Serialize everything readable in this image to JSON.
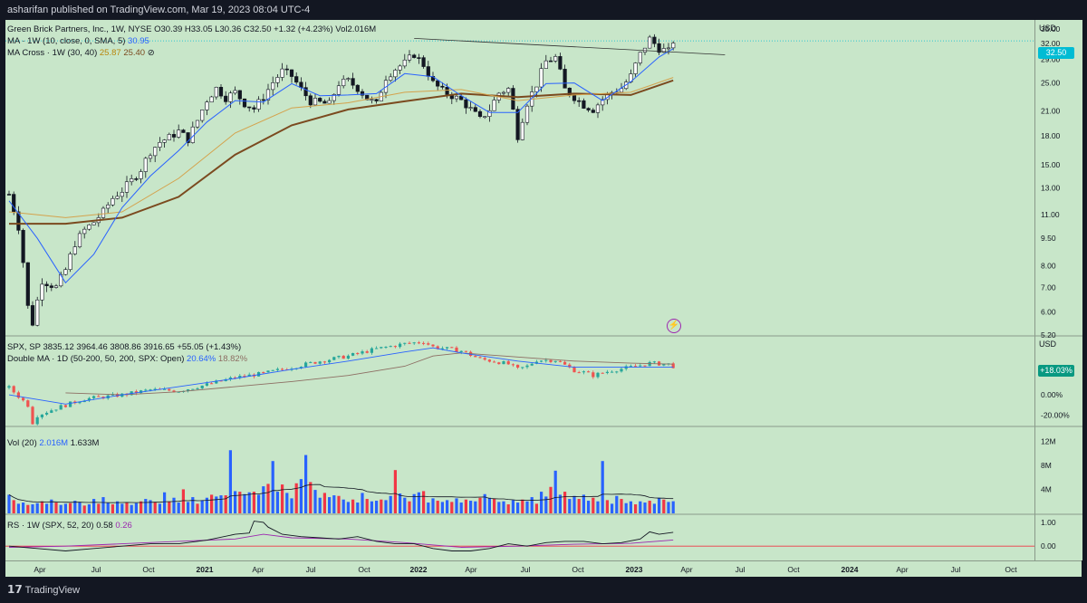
{
  "header": {
    "publisher": "asharifan published on TradingView.com, Mar 19, 2023 08:04 UTC-4"
  },
  "footer": {
    "brand": "TradingView"
  },
  "panes": {
    "price": {
      "legend1": "Green Brick Partners, Inc., 1W, NYSE",
      "ohlc": "O30.39 H33.05 L30.36 C32.50 +1.32 (+4.23%) Vol2.016M",
      "legend2_label": "MA · 1W (10, close, 0, SMA, 5)",
      "legend2_value": "30.95",
      "legend3_label": "MA Cross · 1W (30, 40)",
      "legend3_v1": "25.87",
      "legend3_v2": "25.40",
      "legend3_suffix": "⊘",
      "currency": "USD",
      "last_price": "32.50",
      "ticks": [
        "35.00",
        "32.00",
        "29.00",
        "25.00",
        "21.00",
        "18.00",
        "15.00",
        "13.00",
        "11.00",
        "9.50",
        "8.00",
        "7.00",
        "6.00",
        "5.20"
      ]
    },
    "spx": {
      "legend1": "SPX, SP",
      "ohlc": "3835.12 3964.46 3808.86 3916.65 +55.05 (+1.43%)",
      "legend2_label": "Double MA · 1D (50-200, 50, 200, SPX: Open)",
      "legend2_v1": "20.64%",
      "legend2_v2": "18.82%",
      "currency": "USD",
      "last_pct": "+18.03%",
      "ticks": [
        "0.00%",
        "-20.00%"
      ]
    },
    "vol": {
      "legend_label": "Vol (20)",
      "legend_v1": "2.016M",
      "legend_v2": "1.633M",
      "ticks": [
        "12M",
        "8M",
        "4M"
      ]
    },
    "rs": {
      "legend_label": "RS · 1W (SPX, 52, 20)",
      "legend_v1": "0.58",
      "legend_v2": "0.26",
      "ticks": [
        "1.00",
        "0.00"
      ]
    }
  },
  "xaxis": [
    "Apr",
    "Jul",
    "Oct",
    "2021",
    "Apr",
    "Jul",
    "Oct",
    "2022",
    "Apr",
    "Jul",
    "Oct",
    "2023",
    "Apr",
    "Jul",
    "Oct",
    "2024",
    "Apr",
    "Jul",
    "Oct"
  ],
  "colors": {
    "up": "#ffffff",
    "down": "#131722",
    "ma10": "#2962ff",
    "ma30": "#d4a24c",
    "ma40": "#7b4a1f",
    "spx_up": "#26a69a",
    "spx_down": "#ef5350",
    "vol_up": "#2962ff",
    "vol_down": "#f23645",
    "rs": "#131722",
    "rs_ma": "#9c27b0",
    "ref": "#f23645",
    "badge_price": "#00bcd4",
    "badge_pct": "#089981"
  },
  "chart_data": [
    {
      "type": "candlestick",
      "title": "Green Brick Partners, Inc., 1W, NYSE",
      "ylabel": "USD",
      "ylim": [
        5.2,
        36
      ],
      "log_scale": true,
      "x_start": "2020-03-02",
      "x_end": "2023-03-13",
      "close_path": [
        [
          0,
          12.5
        ],
        [
          2,
          10.2
        ],
        [
          4,
          6.2
        ],
        [
          5,
          5.6
        ],
        [
          7,
          7.3
        ],
        [
          10,
          7.0
        ],
        [
          12,
          7.8
        ],
        [
          14,
          9.2
        ],
        [
          16,
          10.0
        ],
        [
          18,
          10.5
        ],
        [
          20,
          11.2
        ],
        [
          22,
          12.2
        ],
        [
          24,
          12.8
        ],
        [
          26,
          13.6
        ],
        [
          28,
          14.6
        ],
        [
          30,
          16.3
        ],
        [
          32,
          17.3
        ],
        [
          34,
          17.8
        ],
        [
          36,
          18.5
        ],
        [
          38,
          17.6
        ],
        [
          40,
          19.8
        ],
        [
          42,
          22.5
        ],
        [
          44,
          24.2
        ],
        [
          46,
          22.8
        ],
        [
          48,
          23.6
        ],
        [
          50,
          22.0
        ],
        [
          52,
          21.3
        ],
        [
          54,
          22.9
        ],
        [
          56,
          25.1
        ],
        [
          58,
          26.9
        ],
        [
          60,
          26.1
        ],
        [
          62,
          24.0
        ],
        [
          64,
          22.3
        ],
        [
          66,
          22.1
        ],
        [
          68,
          21.9
        ],
        [
          70,
          24.9
        ],
        [
          72,
          25.3
        ],
        [
          74,
          24.2
        ],
        [
          76,
          22.7
        ],
        [
          78,
          21.9
        ],
        [
          80,
          25.9
        ],
        [
          82,
          27.3
        ],
        [
          84,
          28.3
        ],
        [
          86,
          29.9
        ],
        [
          88,
          28.0
        ],
        [
          90,
          25.0
        ],
        [
          92,
          23.8
        ],
        [
          94,
          23.1
        ],
        [
          96,
          22.4
        ],
        [
          98,
          21.2
        ],
        [
          100,
          19.9
        ],
        [
          102,
          21.2
        ],
        [
          104,
          23.5
        ],
        [
          106,
          24.1
        ],
        [
          108,
          18.0
        ],
        [
          110,
          22.1
        ],
        [
          112,
          24.8
        ],
        [
          114,
          28.6
        ],
        [
          116,
          29.3
        ],
        [
          118,
          24.0
        ],
        [
          120,
          22.9
        ],
        [
          122,
          21.8
        ],
        [
          124,
          21.2
        ],
        [
          126,
          22.6
        ],
        [
          128,
          23.6
        ],
        [
          130,
          24.2
        ],
        [
          132,
          26.1
        ],
        [
          134,
          29.9
        ],
        [
          136,
          32.9
        ],
        [
          138,
          31.0
        ],
        [
          140,
          30.4
        ],
        [
          141,
          32.5
        ]
      ],
      "ma10_path": [
        [
          0,
          12.0
        ],
        [
          6,
          9.5
        ],
        [
          12,
          7.2
        ],
        [
          18,
          8.6
        ],
        [
          24,
          11.5
        ],
        [
          30,
          14.0
        ],
        [
          36,
          16.4
        ],
        [
          42,
          19.6
        ],
        [
          48,
          22.4
        ],
        [
          54,
          22.2
        ],
        [
          60,
          24.9
        ],
        [
          66,
          23.1
        ],
        [
          72,
          23.2
        ],
        [
          78,
          23.4
        ],
        [
          84,
          26.5
        ],
        [
          90,
          26.0
        ],
        [
          96,
          23.1
        ],
        [
          102,
          20.8
        ],
        [
          108,
          20.8
        ],
        [
          114,
          24.9
        ],
        [
          120,
          25.0
        ],
        [
          126,
          22.4
        ],
        [
          132,
          25.2
        ],
        [
          138,
          29.4
        ],
        [
          141,
          30.95
        ]
      ],
      "ma30_path": [
        [
          0,
          11.2
        ],
        [
          12,
          10.8
        ],
        [
          24,
          11.2
        ],
        [
          36,
          13.8
        ],
        [
          48,
          18.3
        ],
        [
          60,
          21.4
        ],
        [
          72,
          22.1
        ],
        [
          84,
          23.6
        ],
        [
          96,
          24.0
        ],
        [
          108,
          22.4
        ],
        [
          120,
          23.2
        ],
        [
          132,
          23.6
        ],
        [
          141,
          25.87
        ]
      ],
      "ma40_path": [
        [
          0,
          10.4
        ],
        [
          12,
          10.4
        ],
        [
          24,
          10.8
        ],
        [
          36,
          12.3
        ],
        [
          48,
          16.0
        ],
        [
          60,
          19.2
        ],
        [
          72,
          21.2
        ],
        [
          84,
          22.3
        ],
        [
          96,
          23.4
        ],
        [
          108,
          22.9
        ],
        [
          120,
          23.4
        ],
        [
          132,
          23.2
        ],
        [
          141,
          25.4
        ]
      ],
      "trendline": [
        [
          86,
          33.0
        ],
        [
          152,
          29.8
        ]
      ]
    },
    {
      "type": "candlestick",
      "title": "SPX, SP",
      "ylabel": "USD",
      "close_pct_path": [
        [
          0,
          7
        ],
        [
          4,
          -10
        ],
        [
          5,
          -27
        ],
        [
          6,
          -20
        ],
        [
          10,
          -13
        ],
        [
          16,
          -4
        ],
        [
          24,
          0
        ],
        [
          30,
          5
        ],
        [
          36,
          4
        ],
        [
          42,
          10
        ],
        [
          48,
          17
        ],
        [
          54,
          21
        ],
        [
          60,
          27
        ],
        [
          66,
          33
        ],
        [
          72,
          38
        ],
        [
          78,
          45
        ],
        [
          84,
          50
        ],
        [
          88,
          52
        ],
        [
          90,
          47
        ],
        [
          96,
          43
        ],
        [
          100,
          35
        ],
        [
          104,
          32
        ],
        [
          106,
          30
        ],
        [
          108,
          25
        ],
        [
          110,
          28
        ],
        [
          112,
          34
        ],
        [
          116,
          34
        ],
        [
          120,
          24
        ],
        [
          122,
          22
        ],
        [
          124,
          19
        ],
        [
          128,
          24
        ],
        [
          132,
          27
        ],
        [
          136,
          31
        ],
        [
          140,
          30
        ],
        [
          141,
          28
        ]
      ],
      "ma_pct_paths": [
        {
          "name": "50",
          "points": [
            [
              0,
              0
            ],
            [
              12,
              -9
            ],
            [
              24,
              0
            ],
            [
              36,
              8
            ],
            [
              48,
              16
            ],
            [
              60,
              25
            ],
            [
              72,
              33
            ],
            [
              84,
              42
            ],
            [
              90,
              46
            ],
            [
              96,
              41
            ],
            [
              108,
              33
            ],
            [
              120,
              27
            ],
            [
              132,
              27
            ],
            [
              141,
              27
            ]
          ]
        },
        {
          "name": "200",
          "points": [
            [
              12,
              2
            ],
            [
              24,
              0
            ],
            [
              36,
              3
            ],
            [
              48,
              8
            ],
            [
              60,
              13
            ],
            [
              72,
              19
            ],
            [
              84,
              28
            ],
            [
              90,
              38
            ],
            [
              96,
              41
            ],
            [
              108,
              37
            ],
            [
              120,
              33
            ],
            [
              132,
              31
            ],
            [
              141,
              30
            ]
          ]
        }
      ]
    },
    {
      "type": "bar",
      "title": "Vol (20)",
      "ylabel": "",
      "ylim": [
        0,
        14
      ],
      "values": [
        3.1,
        2.2,
        1.6,
        1.8,
        1.4,
        1.5,
        1.7,
        2.0,
        1.6,
        2.3,
        1.8,
        1.4,
        1.6,
        1.7,
        2.1,
        1.9,
        1.3,
        1.5,
        2.4,
        1.6,
        2.7,
        1.8,
        1.5,
        2.0,
        1.6,
        1.8,
        1.4,
        1.7,
        2.0,
        2.4,
        2.2,
        1.9,
        1.6,
        3.5,
        2.0,
        2.6,
        1.8,
        4.0,
        1.9,
        2.7,
        1.6,
        2.2,
        2.6,
        3.1,
        2.8,
        3.0,
        3.0,
        10.5,
        3.7,
        3.6,
        3.2,
        3.5,
        3.6,
        3.1,
        4.5,
        4.9,
        8.7,
        3.6,
        4.8,
        3.4,
        2.5,
        5.0,
        5.7,
        9.7,
        5.2,
        3.9,
        2.6,
        3.4,
        2.7,
        3.0,
        2.9,
        2.3,
        1.9,
        2.3,
        1.8,
        3.4,
        2.4,
        2.0,
        2.1,
        2.3,
        2.2,
        2.9,
        7.2,
        3.3,
        2.6,
        2.0,
        3.2,
        3.5,
        3.7,
        1.8,
        2.5,
        2.1,
        1.9,
        2.2,
        1.9,
        2.5,
        1.8,
        2.3,
        2.1,
        2.0,
        2.6,
        3.2,
        2.6,
        2.4,
        1.9,
        2.0,
        1.5,
        2.2,
        1.8,
        2.3,
        2.0,
        2.7,
        1.6,
        3.6,
        2.8,
        4.4,
        7.1,
        3.1,
        3.6,
        2.4,
        2.9,
        2.4,
        3.1,
        2.1,
        2.6,
        2.0,
        8.7,
        2.2,
        1.6,
        2.9,
        2.4,
        1.7,
        2.0,
        1.5,
        2.0,
        1.8,
        2.1,
        1.6,
        2.6,
        2.3,
        1.9,
        2.016
      ]
    },
    {
      "type": "line",
      "title": "RS · 1W (SPX, 52, 20)",
      "ylabel": "",
      "ylim": [
        -0.6,
        1.3
      ],
      "series": [
        {
          "name": "RS",
          "points": [
            [
              0,
              0.0
            ],
            [
              6,
              -0.1
            ],
            [
              12,
              -0.2
            ],
            [
              18,
              -0.1
            ],
            [
              24,
              0.0
            ],
            [
              30,
              0.1
            ],
            [
              36,
              0.1
            ],
            [
              42,
              0.25
            ],
            [
              48,
              0.5
            ],
            [
              51,
              0.55
            ],
            [
              52,
              1.05
            ],
            [
              54,
              1.0
            ],
            [
              55,
              0.8
            ],
            [
              58,
              0.5
            ],
            [
              62,
              0.4
            ],
            [
              66,
              0.35
            ],
            [
              70,
              0.3
            ],
            [
              74,
              0.4
            ],
            [
              78,
              0.2
            ],
            [
              82,
              0.1
            ],
            [
              86,
              0.1
            ],
            [
              90,
              -0.1
            ],
            [
              94,
              -0.2
            ],
            [
              98,
              -0.2
            ],
            [
              102,
              -0.1
            ],
            [
              106,
              0.1
            ],
            [
              110,
              0.0
            ],
            [
              114,
              0.15
            ],
            [
              118,
              0.2
            ],
            [
              122,
              0.2
            ],
            [
              126,
              0.1
            ],
            [
              130,
              0.15
            ],
            [
              134,
              0.3
            ],
            [
              136,
              0.6
            ],
            [
              138,
              0.5
            ],
            [
              141,
              0.58
            ]
          ]
        },
        {
          "name": "MA",
          "points": [
            [
              0,
              -0.05
            ],
            [
              12,
              0.0
            ],
            [
              24,
              0.1
            ],
            [
              36,
              0.2
            ],
            [
              48,
              0.3
            ],
            [
              54,
              0.5
            ],
            [
              60,
              0.35
            ],
            [
              72,
              0.3
            ],
            [
              84,
              0.15
            ],
            [
              96,
              -0.05
            ],
            [
              108,
              0.0
            ],
            [
              120,
              0.08
            ],
            [
              132,
              0.12
            ],
            [
              141,
              0.26
            ]
          ]
        }
      ]
    }
  ]
}
